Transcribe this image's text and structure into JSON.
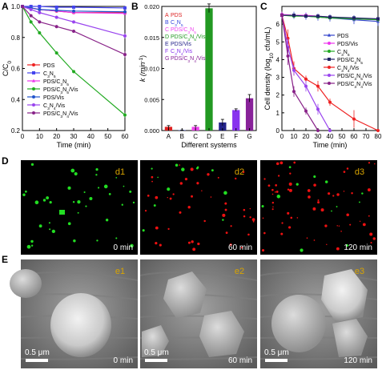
{
  "chart_data": [
    {
      "panel": "A",
      "type": "line",
      "xlabel": "Time (min)",
      "ylabel": "C/C",
      "ylabel_sub": "0",
      "xlim": [
        0,
        60
      ],
      "ylim": [
        0.2,
        1.0
      ],
      "xticks": [
        0,
        10,
        20,
        30,
        40,
        50,
        60
      ],
      "yticks": [
        0.2,
        0.4,
        0.6,
        0.8,
        1.0
      ],
      "ytick_labels": [
        "0.2",
        "0.4",
        "0.6",
        "0.8",
        "1.0"
      ],
      "legend_pos": "bottom-left",
      "series": [
        {
          "name": "PDS",
          "legend": [
            "PDS"
          ],
          "color": "#ee2222",
          "marker": "circle",
          "x": [
            0,
            5,
            10,
            20,
            30,
            60
          ],
          "y": [
            1.0,
            0.99,
            0.98,
            0.97,
            0.96,
            0.96
          ]
        },
        {
          "name": "C3N5",
          "legend": [
            "C",
            "3",
            "N",
            "5"
          ],
          "color": "#4444ee",
          "marker": "square",
          "x": [
            0,
            5,
            10,
            20,
            30,
            60
          ],
          "y": [
            1.0,
            1.0,
            1.0,
            0.995,
            0.995,
            0.99
          ]
        },
        {
          "name": "PDS/C3N5",
          "legend": [
            "PDS/C",
            "3",
            "N",
            "5"
          ],
          "color": "#ee33ee",
          "marker": "triangle",
          "x": [
            0,
            5,
            10,
            20,
            30,
            60
          ],
          "y": [
            1.0,
            0.99,
            0.98,
            0.97,
            0.96,
            0.955
          ]
        },
        {
          "name": "PDS/C3N5/Vis",
          "legend": [
            "PDS/C",
            "3",
            "N",
            "5",
            "/Vis"
          ],
          "color": "#22aa22",
          "marker": "circle",
          "x": [
            0,
            5,
            10,
            20,
            30,
            60
          ],
          "y": [
            1.0,
            0.9,
            0.83,
            0.7,
            0.58,
            0.3
          ],
          "err": [
            0,
            0.01,
            0.01,
            0.01,
            0.01,
            0.015
          ]
        },
        {
          "name": "PDS/Vis",
          "legend": [
            "PDS/Vis"
          ],
          "color": "#2255cc",
          "marker": "circle",
          "x": [
            0,
            5,
            10,
            20,
            30,
            60
          ],
          "y": [
            1.0,
            0.99,
            0.98,
            0.975,
            0.97,
            0.965
          ]
        },
        {
          "name": "C3N4/Vis",
          "legend": [
            "C",
            "3",
            "N",
            "4",
            "/Vis"
          ],
          "color": "#9944ee",
          "marker": "circle",
          "x": [
            0,
            5,
            10,
            20,
            30,
            60
          ],
          "y": [
            1.0,
            0.98,
            0.96,
            0.93,
            0.9,
            0.81
          ],
          "err": [
            0,
            0.01,
            0.01,
            0.01,
            0.01,
            0.015
          ]
        },
        {
          "name": "PDS/C3N4/Vis",
          "legend": [
            "PDS/C",
            "3",
            "N",
            "4",
            "/Vis"
          ],
          "color": "#882288",
          "marker": "circle",
          "x": [
            0,
            5,
            10,
            20,
            30,
            60
          ],
          "y": [
            1.0,
            0.94,
            0.9,
            0.87,
            0.84,
            0.69
          ],
          "err": [
            0,
            0.01,
            0.01,
            0.01,
            0.01,
            0.02
          ]
        }
      ]
    },
    {
      "panel": "B",
      "type": "bar",
      "xlabel": "Different systems",
      "ylabel": "k (min",
      "ylabel_sup": "-1",
      "ylabel_end": ")",
      "ylim": [
        0,
        0.02
      ],
      "yticks": [
        0,
        0.005,
        0.01,
        0.015,
        0.02
      ],
      "ytick_labels": [
        "0.000",
        "0.005",
        "0.010",
        "0.015",
        "0.020"
      ],
      "categories": [
        "A",
        "B",
        "C",
        "D",
        "E",
        "F",
        "G"
      ],
      "values": [
        0.0006,
        5e-05,
        0.0006,
        0.0197,
        0.0013,
        0.0033,
        0.0052
      ],
      "err": [
        0.0002,
        3e-05,
        0.0002,
        0.0007,
        0.0005,
        0.0002,
        0.0006
      ],
      "colors": [
        "#dd2222",
        "#3344dd",
        "#ee44ee",
        "#229922",
        "#222288",
        "#8833ee",
        "#882299"
      ],
      "legend_pos": "top-left",
      "legend": [
        {
          "letter": "A",
          "parts": [
            "PDS"
          ]
        },
        {
          "letter": "B",
          "parts": [
            "C",
            "3",
            "N",
            "5"
          ]
        },
        {
          "letter": "C",
          "parts": [
            "PDS/C",
            "3",
            "N",
            "5"
          ]
        },
        {
          "letter": "D",
          "parts": [
            "PDS/C",
            "3",
            "N",
            "5",
            "/Vis"
          ]
        },
        {
          "letter": "E",
          "parts": [
            "PDS/Vis"
          ]
        },
        {
          "letter": "F",
          "parts": [
            "C",
            "3",
            "N",
            "4",
            "/Vis"
          ]
        },
        {
          "letter": "G",
          "parts": [
            "PDS/C",
            "3",
            "N",
            "4",
            "/Vis"
          ]
        }
      ]
    },
    {
      "panel": "C",
      "type": "line",
      "xlabel": "Time (min)",
      "ylabel": "Cell density (log",
      "ylabel_sub": "10",
      "ylabel_end": " cfu/mL)",
      "xlim": [
        0,
        80
      ],
      "ylim": [
        0,
        7
      ],
      "xticks": [
        0,
        10,
        20,
        30,
        40,
        50,
        60,
        70,
        80
      ],
      "yticks": [
        0,
        1,
        2,
        3,
        4,
        5,
        6
      ],
      "ytick_labels": [
        "0",
        "1",
        "2",
        "3",
        "4",
        "5",
        "6"
      ],
      "legend_pos": "right",
      "series": [
        {
          "name": "PDS",
          "legend": [
            "PDS"
          ],
          "color": "#3344cc",
          "marker": "triangle",
          "x": [
            0,
            10,
            20,
            30,
            40,
            60,
            80
          ],
          "y": [
            6.5,
            6.5,
            6.45,
            6.4,
            6.35,
            6.25,
            6.15
          ],
          "err": [
            0.2,
            0.2,
            0.2,
            0.2,
            0.2,
            0.25,
            0.25
          ]
        },
        {
          "name": "PDS/Vis",
          "legend": [
            "PDS/Vis"
          ],
          "color": "#ee33ee",
          "marker": "circle",
          "x": [
            0,
            10,
            20,
            30,
            40,
            60,
            80
          ],
          "y": [
            6.55,
            6.5,
            6.5,
            6.45,
            6.4,
            6.3,
            6.25
          ]
        },
        {
          "name": "C3N5",
          "legend": [
            "C",
            "3",
            "N",
            "5"
          ],
          "color": "#22aa22",
          "marker": "circle",
          "x": [
            0,
            10,
            20,
            30,
            40,
            60,
            80
          ],
          "y": [
            6.5,
            6.45,
            6.45,
            6.4,
            6.35,
            6.3,
            6.25
          ]
        },
        {
          "name": "PDS/C3N5",
          "legend": [
            "PDS/C",
            "3",
            "N",
            "5"
          ],
          "color": "#222266",
          "marker": "square",
          "x": [
            0,
            10,
            20,
            30,
            40,
            60,
            80
          ],
          "y": [
            6.5,
            6.5,
            6.45,
            6.45,
            6.4,
            6.35,
            6.3
          ]
        },
        {
          "name": "C3N4/Vis",
          "legend": [
            "C",
            "3",
            "N",
            "4",
            "/Vis"
          ],
          "color": "#ee2222",
          "marker": "circle",
          "x": [
            0,
            5,
            10,
            20,
            30,
            40,
            60,
            80
          ],
          "y": [
            6.5,
            5.2,
            3.5,
            2.9,
            2.5,
            1.6,
            0.65,
            0
          ],
          "err": [
            0.2,
            0.5,
            0.4,
            0.2,
            0.3,
            0.2,
            0.5,
            0
          ]
        },
        {
          "name": "PDS/C3N5/Vis",
          "legend": [
            "PDS/C",
            "3",
            "N",
            "5",
            "/Vis"
          ],
          "color": "#9944ee",
          "marker": "circle",
          "x": [
            0,
            5,
            10,
            20,
            30,
            40
          ],
          "y": [
            6.5,
            4.7,
            3.4,
            2.5,
            1.2,
            0
          ],
          "err": [
            0.2,
            0.5,
            0.3,
            0.3,
            0.3,
            0
          ]
        },
        {
          "name": "PDS/C3N4/Vis",
          "legend": [
            "PDS/C",
            "3",
            "N",
            "4",
            "/Vis"
          ],
          "color": "#882288",
          "marker": "circle",
          "x": [
            0,
            5,
            10,
            20,
            30
          ],
          "y": [
            6.5,
            4.2,
            2.2,
            1.1,
            0
          ],
          "err": [
            0.2,
            0.5,
            0.3,
            0.2,
            0
          ]
        }
      ]
    }
  ],
  "panels": {
    "D": {
      "letter": "D",
      "frames": [
        {
          "tag": "d1",
          "time": "0 min",
          "green_spots": 40,
          "red_spots": 0
        },
        {
          "tag": "d2",
          "time": "60 min",
          "green_spots": 12,
          "red_spots": 45
        },
        {
          "tag": "d3",
          "time": "120 min",
          "green_spots": 12,
          "red_spots": 60
        }
      ]
    },
    "E": {
      "letter": "E",
      "frames": [
        {
          "tag": "e1",
          "time": "0 min",
          "scale": "0.5 μm"
        },
        {
          "tag": "e2",
          "time": "60 min",
          "scale": "0.5 μm"
        },
        {
          "tag": "e3",
          "time": "120 min",
          "scale": "0.5 μm"
        }
      ]
    },
    "colors": {
      "tag": "#d9a400",
      "fluor_green": "#22dd22",
      "fluor_red": "#ee1111"
    }
  }
}
